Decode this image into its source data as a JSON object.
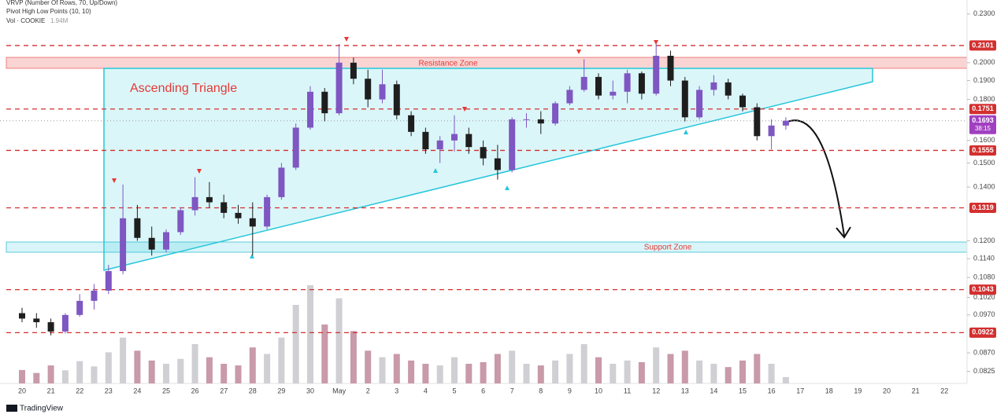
{
  "chart_data": {
    "type": "candlestick",
    "indicators": [
      "VRVP (Number Of Rows, 70, Up/Down)",
      "Pivot High Low Points (10, 10)"
    ],
    "volume_title": "Vol · COOKIE",
    "volume_last_label": "1.94M",
    "annotations": {
      "triangle": "Ascending Triangle",
      "resistance": "Resistance Zone",
      "support": "Support Zone"
    },
    "countdown": "38:15",
    "brand": "TradingView",
    "categories": [
      "20",
      null,
      "21",
      null,
      "22",
      null,
      "23",
      null,
      "24",
      null,
      "25",
      null,
      "26",
      null,
      "27",
      null,
      "28",
      null,
      "29",
      null,
      "30",
      null,
      "May",
      null,
      "2",
      null,
      "3",
      null,
      "4",
      null,
      "5",
      null,
      "6",
      null,
      "7",
      null,
      "8",
      null,
      "9",
      null,
      "10",
      null,
      "11",
      null,
      "12",
      null,
      "13",
      null,
      "14",
      null,
      "15",
      null,
      "16",
      null,
      "17",
      null,
      "18",
      null,
      "19",
      null,
      "20",
      null,
      "21",
      null,
      "22",
      null
    ],
    "open": [
      0.0975,
      0.096,
      0.095,
      0.0925,
      0.097,
      0.101,
      0.104,
      0.11,
      0.128,
      0.121,
      0.117,
      0.123,
      0.131,
      0.136,
      0.134,
      0.13,
      0.128,
      0.125,
      0.136,
      0.148,
      0.166,
      0.184,
      0.173,
      0.2,
      0.191,
      0.18,
      0.188,
      0.172,
      0.164,
      0.156,
      0.16,
      0.163,
      0.157,
      0.152,
      0.147,
      0.17,
      0.17,
      0.168,
      0.178,
      0.185,
      0.192,
      0.182,
      0.184,
      0.194,
      0.183,
      0.204,
      0.19,
      0.171,
      0.185,
      0.189,
      0.182,
      0.176,
      0.162,
      0.167,
      null,
      null,
      null,
      null,
      null,
      null,
      null,
      null,
      null,
      null,
      null,
      null
    ],
    "high": [
      0.099,
      0.0975,
      0.096,
      0.0975,
      0.103,
      0.106,
      0.112,
      0.141,
      0.133,
      0.125,
      0.124,
      0.132,
      0.144,
      0.142,
      0.137,
      0.133,
      0.134,
      0.137,
      0.15,
      0.168,
      0.187,
      0.186,
      0.211,
      0.203,
      0.196,
      0.196,
      0.19,
      0.174,
      0.166,
      0.162,
      0.172,
      0.166,
      0.16,
      0.158,
      0.171,
      0.173,
      0.174,
      0.179,
      0.187,
      0.202,
      0.194,
      0.19,
      0.196,
      0.195,
      0.211,
      0.207,
      0.192,
      0.187,
      0.193,
      0.191,
      0.183,
      0.178,
      0.17,
      0.171,
      null,
      null,
      null,
      null,
      null,
      null,
      null,
      null,
      null,
      null,
      null,
      null
    ],
    "low": [
      0.095,
      0.0935,
      0.0915,
      0.092,
      0.0965,
      0.0985,
      0.103,
      0.109,
      0.12,
      0.115,
      0.116,
      0.122,
      0.129,
      0.132,
      0.128,
      0.126,
      0.115,
      0.124,
      0.135,
      0.147,
      0.165,
      0.169,
      0.172,
      0.188,
      0.176,
      0.178,
      0.17,
      0.162,
      0.154,
      0.15,
      0.155,
      0.154,
      0.149,
      0.143,
      0.146,
      0.166,
      0.163,
      0.167,
      0.177,
      0.184,
      0.18,
      0.18,
      0.178,
      0.18,
      0.182,
      0.187,
      0.169,
      0.17,
      0.182,
      0.18,
      0.174,
      0.16,
      0.156,
      0.165,
      null,
      null,
      null,
      null,
      null,
      null,
      null,
      null,
      null,
      null,
      null,
      null
    ],
    "close": [
      0.096,
      0.095,
      0.0925,
      0.097,
      0.101,
      0.104,
      0.11,
      0.128,
      0.121,
      0.117,
      0.123,
      0.131,
      0.136,
      0.134,
      0.13,
      0.128,
      0.125,
      0.136,
      0.148,
      0.166,
      0.184,
      0.173,
      0.2,
      0.191,
      0.18,
      0.188,
      0.172,
      0.164,
      0.156,
      0.16,
      0.163,
      0.157,
      0.152,
      0.147,
      0.17,
      0.17,
      0.168,
      0.178,
      0.185,
      0.192,
      0.182,
      0.184,
      0.194,
      0.183,
      0.204,
      0.19,
      0.171,
      0.185,
      0.189,
      0.182,
      0.176,
      0.162,
      0.167,
      0.1693,
      null,
      null,
      null,
      null,
      null,
      null,
      null,
      null,
      null,
      null,
      null,
      null
    ],
    "volume": [
      4100000,
      3200000,
      5500000,
      4000000,
      6800000,
      5200000,
      9500000,
      14000000,
      10000000,
      7000000,
      6000000,
      7500000,
      12000000,
      8000000,
      6000000,
      5500000,
      11000000,
      9000000,
      14000000,
      24000000,
      30000000,
      18000000,
      26000000,
      16000000,
      10000000,
      8000000,
      9000000,
      7000000,
      6000000,
      5500000,
      8000000,
      6000000,
      6500000,
      9000000,
      10000000,
      6000000,
      5500000,
      7000000,
      9000000,
      12000000,
      8000000,
      6000000,
      7000000,
      6500000,
      11000000,
      9000000,
      10000000,
      7000000,
      6000000,
      5000000,
      7000000,
      9000000,
      6000000,
      1940000,
      null,
      null,
      null,
      null,
      null,
      null,
      null,
      null,
      null,
      null,
      null,
      null
    ],
    "colors": {
      "up": "#7e57c2",
      "down": "#1e1e1e",
      "volume_up": "#cfcfd4",
      "volume_down": "#c99aa9",
      "level": "#d32f2f",
      "last": "#a040c0"
    },
    "log_scale": true,
    "grid": false,
    "ylim": [
      0.0797,
      0.2394
    ],
    "yticks": [
      {
        "value": 0.23,
        "label": "0.2300"
      },
      {
        "value": 0.2,
        "label": "0.2000"
      },
      {
        "value": 0.19,
        "label": "0.1900"
      },
      {
        "value": 0.18,
        "label": "0.1800"
      },
      {
        "value": 0.16,
        "label": "0.1600"
      },
      {
        "value": 0.15,
        "label": "0.1500"
      },
      {
        "value": 0.14,
        "label": "0.1400"
      },
      {
        "value": 0.12,
        "label": "0.1200"
      },
      {
        "value": 0.114,
        "label": "0.1140"
      },
      {
        "value": 0.108,
        "label": "0.1080"
      },
      {
        "value": 0.102,
        "label": "0.1020"
      },
      {
        "value": 0.097,
        "label": "0.0970"
      },
      {
        "value": 0.087,
        "label": "0.0870"
      },
      {
        "value": 0.0825,
        "label": "0.0825"
      }
    ],
    "levels": [
      0.2101,
      0.1751,
      0.1555,
      0.1319,
      0.1043,
      0.0922
    ],
    "last_price": 0.1693
  }
}
